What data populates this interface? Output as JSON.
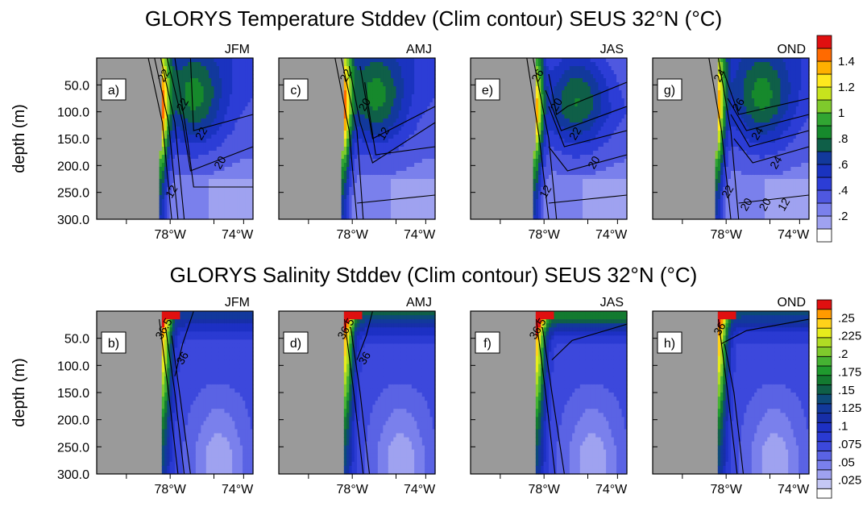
{
  "titles": {
    "top": "GLORYS Temperature Stddev (Clim contour) SEUS 32°N (°C)",
    "bottom": "GLORYS Salinity Stddev (Clim contour) SEUS 32°N (°C)"
  },
  "chart_data": [
    {
      "type": "heatmap",
      "title": "GLORYS Temperature Stddev (Clim contour) SEUS 32°N (°C)",
      "ylabel": "depth (m)",
      "ytick_labels": [
        "50.0",
        "100.0",
        "150.0",
        "200.0",
        "250.0",
        "300.0"
      ],
      "xtick_labels": [
        "78°W",
        "74°W"
      ],
      "ylim": [
        0,
        300
      ],
      "xlim": [
        81,
        72.5
      ],
      "colorbar": {
        "labels": [
          "1.4",
          "1.2",
          "1",
          ".8",
          ".6",
          ".4",
          ".2"
        ],
        "levels": [
          0.1,
          0.2,
          0.3,
          0.4,
          0.5,
          0.6,
          0.7,
          0.8,
          0.9,
          1.0,
          1.1,
          1.2,
          1.3,
          1.4,
          1.5
        ],
        "colors": [
          "#ffffff",
          "#9fa2f0",
          "#7a80ec",
          "#4f58e0",
          "#2c3dd6",
          "#1a33c0",
          "#12399c",
          "#0f5f48",
          "#16892c",
          "#31a532",
          "#7fca2c",
          "#c7e31d",
          "#ffe81e",
          "#ffb000",
          "#ff6a00",
          "#e01010"
        ]
      },
      "panels": [
        {
          "label": "a)",
          "season": "JFM",
          "contour_labels": [
            "22",
            "22",
            "22",
            "20",
            "12"
          ]
        },
        {
          "label": "c)",
          "season": "AMJ",
          "contour_labels": [
            "22",
            "20",
            "12"
          ]
        },
        {
          "label": "e)",
          "season": "JAS",
          "contour_labels": [
            "26",
            "20",
            "22",
            "20",
            "12"
          ]
        },
        {
          "label": "g)",
          "season": "OND",
          "contour_labels": [
            "24",
            "26",
            "24",
            "24",
            "22",
            "20",
            "20",
            "12"
          ]
        }
      ]
    },
    {
      "type": "heatmap",
      "title": "GLORYS Salinity Stddev (Clim contour) SEUS 32°N (°C)",
      "ylabel": "depth (m)",
      "ytick_labels": [
        "50.0",
        "100.0",
        "150.0",
        "200.0",
        "250.0",
        "300.0"
      ],
      "xtick_labels": [
        "78°W",
        "74°W"
      ],
      "ylim": [
        0,
        300
      ],
      "xlim": [
        81,
        72.5
      ],
      "colorbar": {
        "labels": [
          ".25",
          ".225",
          ".2",
          ".175",
          ".15",
          ".125",
          ".1",
          ".075",
          ".05",
          ".025"
        ],
        "levels": [
          0.0125,
          0.025,
          0.0375,
          0.05,
          0.0625,
          0.075,
          0.0875,
          0.1,
          0.1125,
          0.125,
          0.1375,
          0.15,
          0.1625,
          0.175,
          0.1875,
          0.2,
          0.2125,
          0.225,
          0.2375,
          0.25
        ],
        "colors": [
          "#ffffff",
          "#c5c8f5",
          "#9fa2f0",
          "#7a80ec",
          "#5a63e4",
          "#3c48dc",
          "#2a3ad2",
          "#1d30c4",
          "#172fa8",
          "#12399c",
          "#0d4a78",
          "#0f5f48",
          "#137a30",
          "#1f9a2e",
          "#45b232",
          "#7fca2c",
          "#b0dc24",
          "#e6ec1c",
          "#ffd21a",
          "#ff9a00",
          "#e01010"
        ]
      },
      "panels": [
        {
          "label": "b)",
          "season": "JFM",
          "contour_labels": [
            "36.5",
            "36"
          ]
        },
        {
          "label": "d)",
          "season": "AMJ",
          "contour_labels": [
            "36.5",
            "36"
          ]
        },
        {
          "label": "f)",
          "season": "JAS",
          "contour_labels": [
            "36.5"
          ]
        },
        {
          "label": "h)",
          "season": "OND",
          "contour_labels": [
            "36"
          ]
        }
      ]
    }
  ]
}
